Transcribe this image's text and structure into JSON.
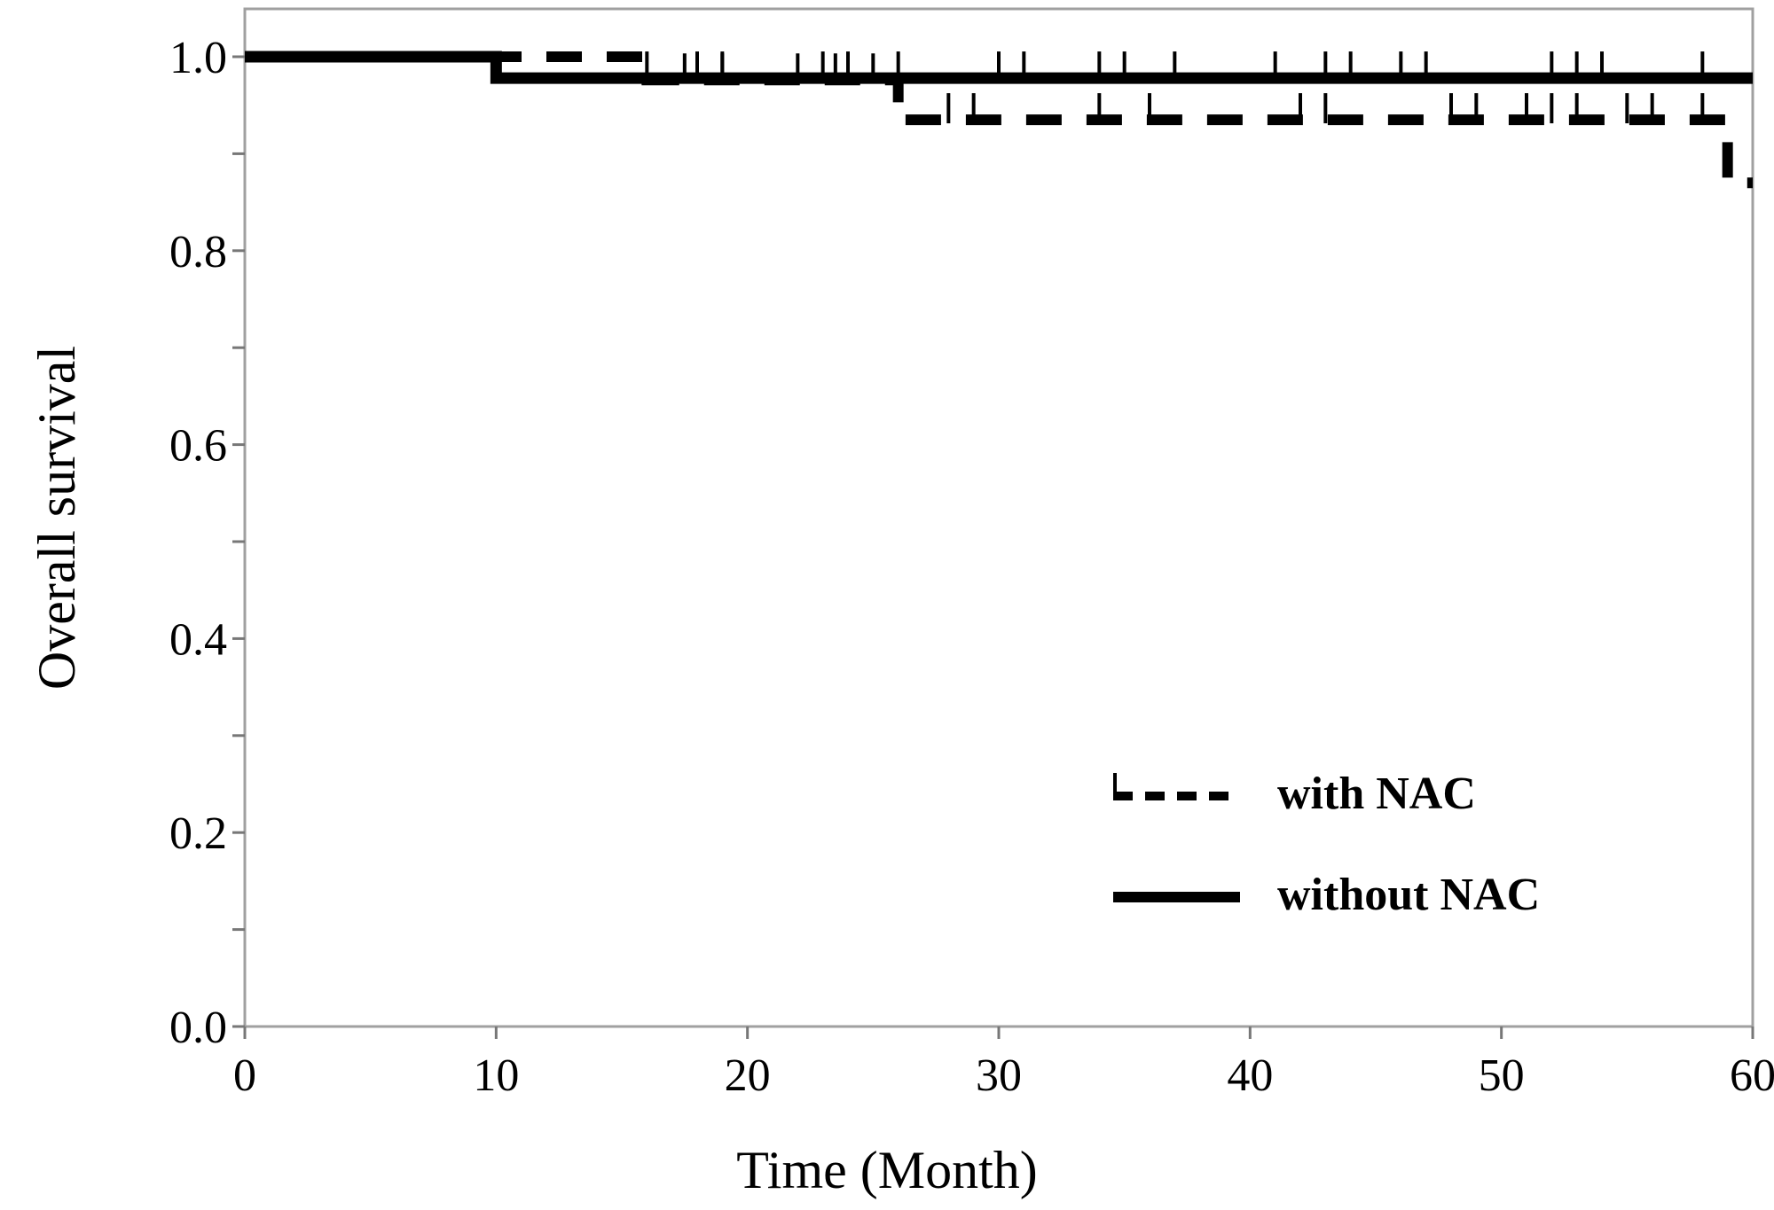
{
  "chart_data": {
    "type": "line",
    "title": "",
    "xlabel": "Time (Month)",
    "ylabel": "Overall survival",
    "xlim": [
      0,
      60
    ],
    "ylim": [
      0,
      1
    ],
    "x_ticks": [
      0,
      10,
      20,
      30,
      40,
      50,
      60
    ],
    "x_tick_labels": [
      "0",
      "10",
      "20",
      "30",
      "40",
      "50",
      "60"
    ],
    "y_ticks": [
      0,
      0.2,
      0.4,
      0.6,
      0.8,
      1.0
    ],
    "y_tick_labels": [
      "0.0",
      "0.2",
      "0.4",
      "0.6",
      "0.8",
      "1.0"
    ],
    "y_minor_step": 0.1,
    "grid": false,
    "legend_position": "bottom-right",
    "series": [
      {
        "name": "with NAC",
        "style": "dashed",
        "color": "#000000",
        "steps": [
          [
            0,
            1.0
          ],
          [
            16,
            0.976
          ],
          [
            26,
            0.935
          ],
          [
            59,
            0.87
          ]
        ],
        "censored": [
          17.5,
          19,
          22,
          23.5,
          25,
          28,
          29,
          34,
          36,
          42,
          43,
          48,
          49,
          51,
          52,
          53,
          55,
          56,
          58
        ]
      },
      {
        "name": "without NAC",
        "style": "solid",
        "color": "#000000",
        "steps": [
          [
            0,
            1.0
          ],
          [
            10,
            0.978
          ],
          [
            60,
            0.978
          ]
        ],
        "censored": [
          16,
          18,
          19,
          23,
          24,
          26,
          30,
          31,
          34,
          35,
          37,
          41,
          43,
          44,
          46,
          47,
          52,
          53,
          54,
          58
        ]
      }
    ]
  }
}
